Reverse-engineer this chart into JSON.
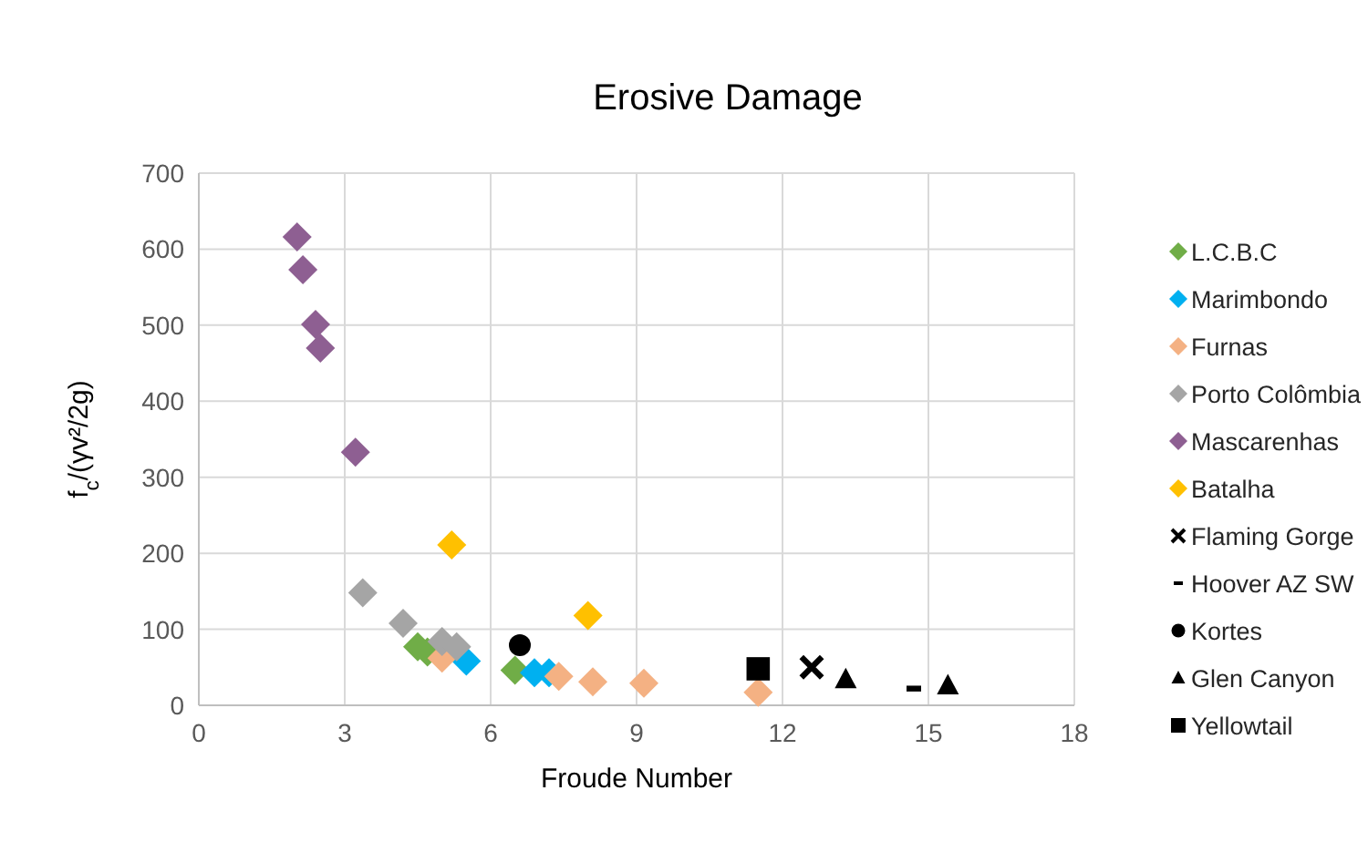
{
  "chart_data": {
    "type": "scatter",
    "title": "Erosive Damage",
    "xlabel": "Froude Number",
    "ylabel": "f$_{c}$/(γv²/2g)",
    "xlim": [
      0,
      18
    ],
    "ylim": [
      0,
      700
    ],
    "xticks": [
      0,
      3,
      6,
      9,
      12,
      15,
      18
    ],
    "yticks": [
      0,
      100,
      200,
      300,
      400,
      500,
      600,
      700
    ],
    "grid": true,
    "legend": "right",
    "series": [
      {
        "name": "L.C.B.C",
        "color": "#70ad47",
        "marker": "diamond",
        "x": [
          4.5,
          4.7,
          6.5
        ],
        "values": [
          77,
          70,
          46
        ]
      },
      {
        "name": "Marimbondo",
        "color": "#00b0f0",
        "marker": "diamond",
        "x": [
          5.5,
          6.9,
          7.2
        ],
        "values": [
          58,
          43,
          43
        ]
      },
      {
        "name": "Furnas",
        "color": "#f4b183",
        "marker": "diamond",
        "x": [
          5.0,
          7.4,
          8.1,
          9.15,
          11.5
        ],
        "values": [
          62,
          38,
          31,
          29,
          17
        ]
      },
      {
        "name": "Porto Colômbia",
        "color": "#a5a5a5",
        "marker": "diamond",
        "x": [
          3.37,
          4.2,
          5.0,
          5.3
        ],
        "values": [
          148,
          108,
          84,
          77
        ]
      },
      {
        "name": "Mascarenhas",
        "color": "#8e5f92",
        "marker": "diamond",
        "x": [
          2.02,
          2.14,
          2.4,
          2.5,
          3.22
        ],
        "values": [
          616,
          573,
          501,
          470,
          333
        ]
      },
      {
        "name": "Batalha",
        "color": "#ffc000",
        "marker": "diamond",
        "x": [
          5.2,
          8.0
        ],
        "values": [
          211,
          118
        ]
      },
      {
        "name": "Flaming Gorge",
        "color": "#000000",
        "marker": "cross",
        "x": [
          12.6
        ],
        "values": [
          50
        ]
      },
      {
        "name": "Hoover AZ SW",
        "color": "#000000",
        "x": [
          14.7
        ],
        "values": [
          22
        ]
      },
      {
        "name": "Kortes",
        "color": "#000000",
        "marker": "circle",
        "x": [
          6.6
        ],
        "values": [
          79
        ]
      },
      {
        "name": "Glen Canyon",
        "color": "#000000",
        "marker": "triangle",
        "x": [
          13.3,
          15.4
        ],
        "values": [
          34,
          26
        ]
      },
      {
        "name": "Yellowtail",
        "color": "#000000",
        "marker": "square",
        "x": [
          11.5
        ],
        "values": [
          48
        ]
      }
    ]
  }
}
